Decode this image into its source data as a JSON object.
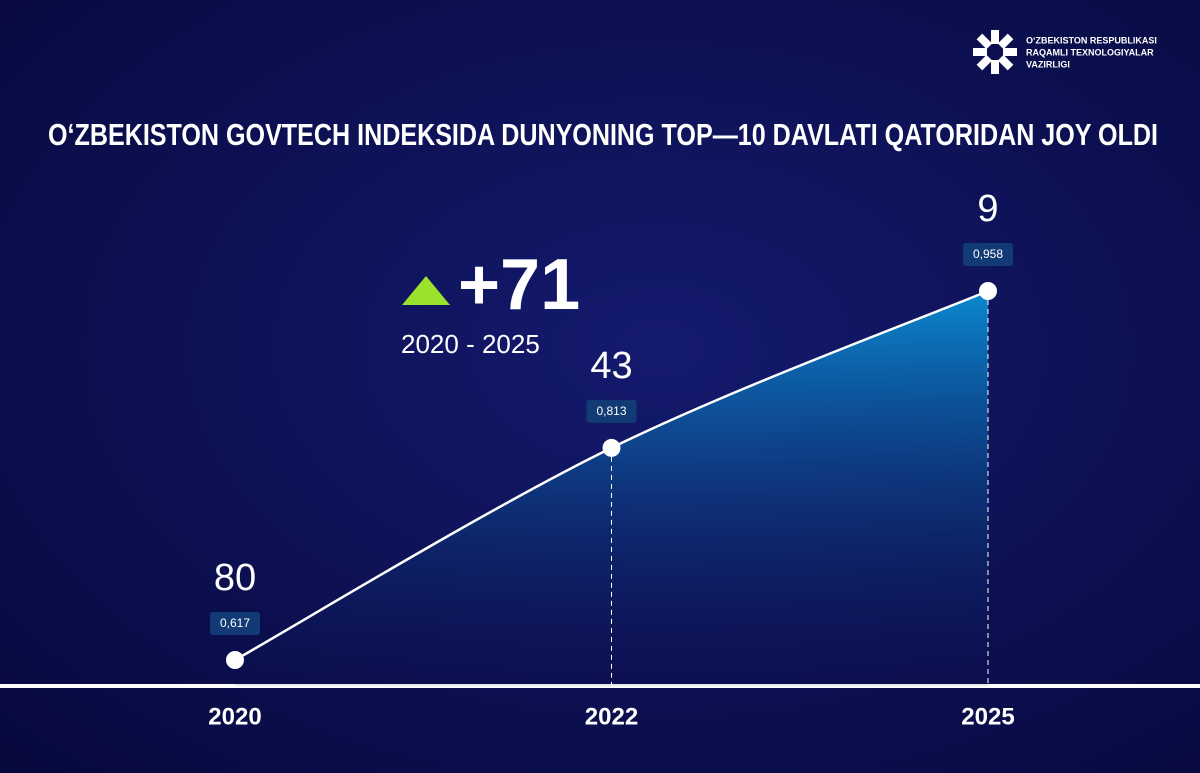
{
  "chart_data": {
    "type": "line",
    "title": "O‘ZBEKISTON GOVTECH INDEKSIDA DUNYONING TOP—10 DAVLATI  QATORIDAN  JOY OLDI",
    "logo_lines": [
      "O‘ZBEKISTON RESPUBLIKASI",
      "RAQAMLI TEXNOLOGIYALAR",
      "VAZIRLIGI"
    ],
    "categories": [
      "2020",
      "2022",
      "2025"
    ],
    "values": [
      0.617,
      0.813,
      0.958
    ],
    "value_labels": [
      "0,617",
      "0,813",
      "0,958"
    ],
    "ranks": [
      80,
      43,
      9
    ],
    "change": {
      "value": 71,
      "label": "+71"
    },
    "change_period": "2020 - 2025",
    "color": "#ffffff",
    "area_color": "#0a8fd6",
    "accent_color": "#9be22d"
  }
}
